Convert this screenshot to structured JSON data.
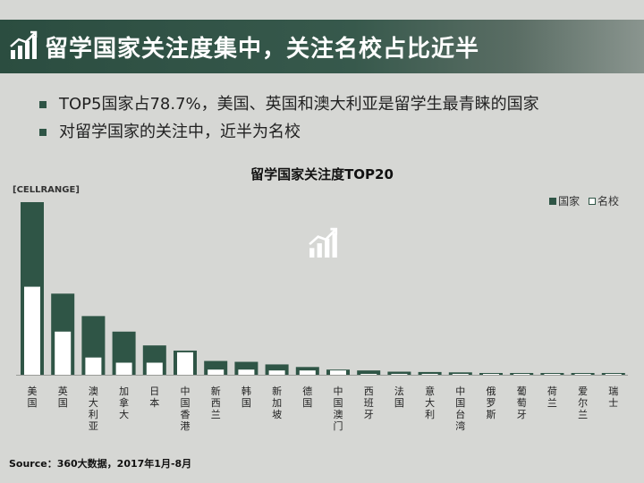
{
  "header": {
    "title": "留学国家关注度集中，关注名校占比近半",
    "icon": "bar-chart-icon"
  },
  "bullets": [
    "TOP5国家占78.7%，美国、英国和澳大利亚是留学生最青睐的国家",
    "对留学国家的关注中，近半为名校"
  ],
  "cellrange_label": "[CELLRANGE]",
  "source": "Source：360大数据，2017年1月-8月",
  "colors": {
    "country": "#2f5546",
    "school": "#ffffff",
    "banner": "#2f5546"
  },
  "chart_data": {
    "type": "bar",
    "title": "留学国家关注度TOP20",
    "categories": [
      "美国",
      "英国",
      "澳大利亚",
      "加拿大",
      "日本",
      "中国香港",
      "新西兰",
      "韩国",
      "新加坡",
      "德国",
      "中国澳门",
      "西班牙",
      "法国",
      "意大利",
      "中国台湾",
      "俄罗斯",
      "葡萄牙",
      "荷兰",
      "爱尔兰",
      "瑞士"
    ],
    "series": [
      {
        "name": "国家",
        "values": [
          100,
          47,
          34,
          25,
          17,
          14,
          8,
          7.5,
          6,
          4.5,
          3,
          2.5,
          1.8,
          1.6,
          1.4,
          1.0,
          0.9,
          0.8,
          0.7,
          0.6
        ]
      },
      {
        "name": "名校",
        "values": [
          51,
          25,
          10,
          7,
          7,
          13,
          3,
          3,
          2.5,
          2.5,
          2.5,
          0.5,
          0.5,
          0.5,
          0.3,
          0.2,
          0.2,
          0.2,
          0.2,
          0.2
        ]
      }
    ],
    "ylim": [
      0,
      100
    ],
    "xlabel": "",
    "ylabel": "",
    "legend": "top-right",
    "overlapped": true,
    "grid": false,
    "axis_ticks": false
  }
}
